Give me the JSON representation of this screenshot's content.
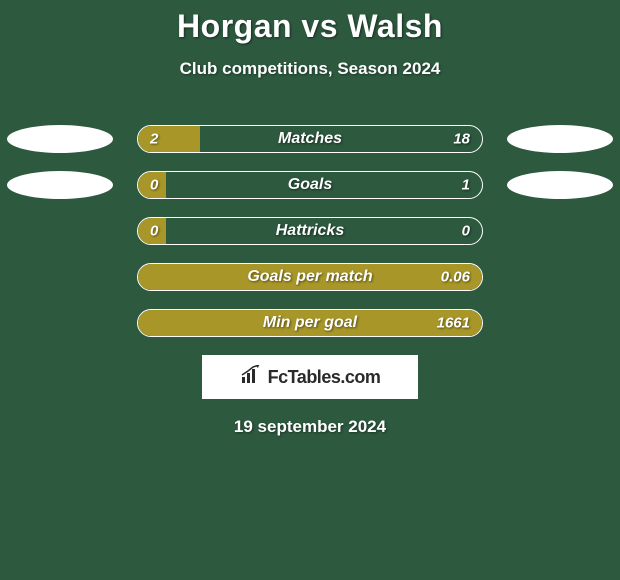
{
  "title": "Horgan vs Walsh",
  "subtitle": "Club competitions, Season 2024",
  "date": "19 september 2024",
  "logo_text": "FcTables.com",
  "colors": {
    "background": "#2d593f",
    "bar_fill": "#a89728",
    "bar_border": "#ffffff",
    "ellipse": "#ffffff",
    "text": "#ffffff"
  },
  "bars": [
    {
      "label": "Matches",
      "left_value": "2",
      "right_value": "18",
      "left_fill_pct": 18,
      "right_fill_pct": 0,
      "show_left_ellipse": true,
      "show_right_ellipse": true,
      "full_fill": false
    },
    {
      "label": "Goals",
      "left_value": "0",
      "right_value": "1",
      "left_fill_pct": 8,
      "right_fill_pct": 0,
      "show_left_ellipse": true,
      "show_right_ellipse": true,
      "full_fill": false
    },
    {
      "label": "Hattricks",
      "left_value": "0",
      "right_value": "0",
      "left_fill_pct": 8,
      "right_fill_pct": 0,
      "show_left_ellipse": false,
      "show_right_ellipse": false,
      "full_fill": false
    },
    {
      "label": "Goals per match",
      "left_value": "",
      "right_value": "0.06",
      "left_fill_pct": 0,
      "right_fill_pct": 0,
      "show_left_ellipse": false,
      "show_right_ellipse": false,
      "full_fill": true
    },
    {
      "label": "Min per goal",
      "left_value": "",
      "right_value": "1661",
      "left_fill_pct": 0,
      "right_fill_pct": 0,
      "show_left_ellipse": false,
      "show_right_ellipse": false,
      "full_fill": true
    }
  ]
}
